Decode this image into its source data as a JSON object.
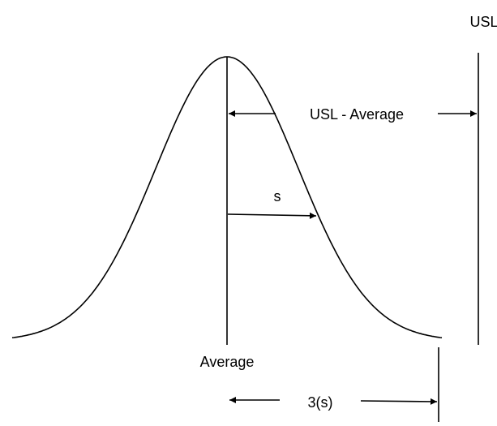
{
  "labels": {
    "usl": "USL",
    "usl_minus_average": "USL - Average",
    "s": "s",
    "average": "Average",
    "three_s": "3(s)"
  }
}
